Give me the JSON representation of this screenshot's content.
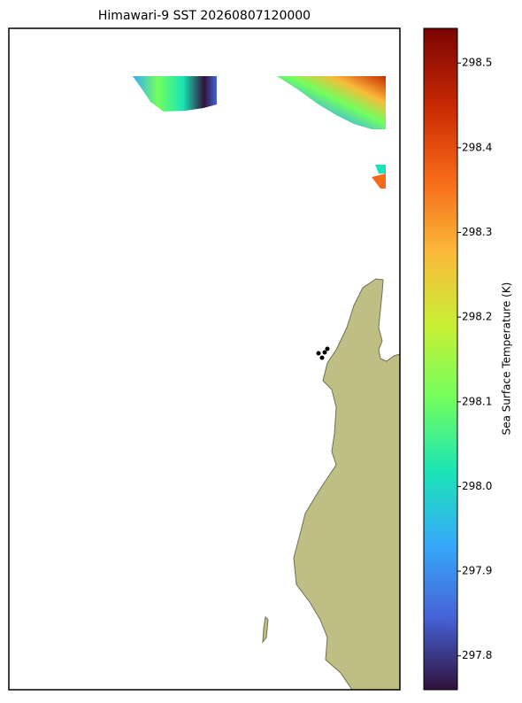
{
  "chart_data": {
    "type": "colorbar-map",
    "title": "Himawari-9 SST 20260807120000",
    "colorbar_label": "Sea Surface Temperature (K)",
    "ylim": [
      297.76,
      298.541
    ],
    "yticks": [
      297.8,
      297.9,
      {
        "value": 298,
        "label": "298.0"
      },
      298.1,
      298.2,
      298.3,
      298.4,
      298.5
    ]
  }
}
